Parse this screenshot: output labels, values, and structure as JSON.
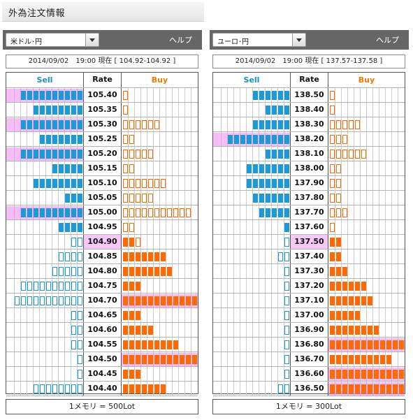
{
  "page_title": "外為注文情報",
  "panels": [
    {
      "pair": "米ドル･円",
      "help": "ヘルプ",
      "stamp": "2014/09/02　19:00 現在 [ 104.92-104.92 ]",
      "headers": {
        "sell": "Sell",
        "rate": "Rate",
        "buy": "Buy"
      },
      "current_rate": "104.90",
      "rows": [
        {
          "rate": "105.40",
          "sell": 10,
          "sell_type": "filled",
          "sell_hl": true,
          "buy": 1,
          "buy_type": "empty",
          "buy_hl": false
        },
        {
          "rate": "105.35",
          "sell": 8,
          "sell_type": "filled",
          "sell_hl": false,
          "buy": 1,
          "buy_type": "empty",
          "buy_hl": false
        },
        {
          "rate": "105.30",
          "sell": 10,
          "sell_type": "filled",
          "sell_hl": true,
          "buy": 6,
          "buy_type": "empty",
          "buy_hl": false
        },
        {
          "rate": "105.25",
          "sell": 7,
          "sell_type": "filled",
          "sell_hl": false,
          "buy": 2,
          "buy_type": "empty",
          "buy_hl": false
        },
        {
          "rate": "105.20",
          "sell": 10,
          "sell_type": "filled",
          "sell_hl": true,
          "buy": 5,
          "buy_type": "empty",
          "buy_hl": false
        },
        {
          "rate": "105.15",
          "sell": 5,
          "sell_type": "filled",
          "sell_hl": false,
          "buy": 2,
          "buy_type": "empty",
          "buy_hl": false
        },
        {
          "rate": "105.10",
          "sell": 8,
          "sell_type": "filled",
          "sell_hl": false,
          "buy": 7,
          "buy_type": "empty",
          "buy_hl": false
        },
        {
          "rate": "105.05",
          "sell": 3,
          "sell_type": "filled",
          "sell_hl": false,
          "buy": 5,
          "buy_type": "empty",
          "buy_hl": false
        },
        {
          "rate": "105.00",
          "sell": 10,
          "sell_type": "filled",
          "sell_hl": true,
          "buy": 11,
          "buy_type": "empty",
          "buy_hl": false
        },
        {
          "rate": "104.95",
          "sell": 4,
          "sell_type": "filled",
          "sell_hl": false,
          "buy": 2,
          "buy_type": "empty",
          "buy_hl": false
        },
        {
          "rate": "104.90",
          "sell": 2,
          "sell_type": "empty",
          "sell_hl": false,
          "buy": 3,
          "buy_type": "mixed",
          "buy_hl": false
        },
        {
          "rate": "104.85",
          "sell": 4,
          "sell_type": "empty",
          "sell_hl": false,
          "buy": 7,
          "buy_type": "filled",
          "buy_hl": false
        },
        {
          "rate": "104.80",
          "sell": 5,
          "sell_type": "empty",
          "sell_hl": false,
          "buy": 8,
          "buy_type": "filled",
          "buy_hl": false
        },
        {
          "rate": "104.75",
          "sell": 10,
          "sell_type": "empty",
          "sell_hl": false,
          "buy": 3,
          "buy_type": "filled",
          "buy_hl": false
        },
        {
          "rate": "104.70",
          "sell": 11,
          "sell_type": "empty",
          "sell_hl": false,
          "buy": 12,
          "buy_type": "filled",
          "buy_hl": true
        },
        {
          "rate": "104.65",
          "sell": 2,
          "sell_type": "empty",
          "sell_hl": false,
          "buy": 3,
          "buy_type": "filled",
          "buy_hl": false
        },
        {
          "rate": "104.60",
          "sell": 2,
          "sell_type": "empty",
          "sell_hl": false,
          "buy": 5,
          "buy_type": "filled",
          "buy_hl": false
        },
        {
          "rate": "104.55",
          "sell": 2,
          "sell_type": "empty",
          "sell_hl": false,
          "buy": 9,
          "buy_type": "filled",
          "buy_hl": false
        },
        {
          "rate": "104.50",
          "sell": 1,
          "sell_type": "empty",
          "sell_hl": false,
          "buy": 12,
          "buy_type": "filled",
          "buy_hl": true
        },
        {
          "rate": "104.45",
          "sell": 1,
          "sell_type": "empty",
          "sell_hl": false,
          "buy": 3,
          "buy_type": "filled",
          "buy_hl": false
        },
        {
          "rate": "104.40",
          "sell": 8,
          "sell_type": "empty",
          "sell_hl": false,
          "buy": 7,
          "buy_type": "filled",
          "buy_hl": false
        }
      ],
      "footer": "1メモリ = 500Lot"
    },
    {
      "pair": "ユーロ･円",
      "help": "ヘルプ",
      "stamp": "2014/09/02　19:00 現在 [ 137.57-137.58 ]",
      "headers": {
        "sell": "Sell",
        "rate": "Rate",
        "buy": "Buy"
      },
      "current_rate": "137.50",
      "rows": [
        {
          "rate": "138.50",
          "sell": 6,
          "sell_type": "filled",
          "sell_hl": false,
          "buy": 1,
          "buy_type": "empty",
          "buy_hl": false
        },
        {
          "rate": "138.40",
          "sell": 4,
          "sell_type": "filled",
          "sell_hl": false,
          "buy": 1,
          "buy_type": "empty",
          "buy_hl": false
        },
        {
          "rate": "138.30",
          "sell": 6,
          "sell_type": "filled",
          "sell_hl": false,
          "buy": 5,
          "buy_type": "empty",
          "buy_hl": false
        },
        {
          "rate": "138.20",
          "sell": 10,
          "sell_type": "filled",
          "sell_hl": true,
          "buy": 3,
          "buy_type": "empty",
          "buy_hl": false
        },
        {
          "rate": "138.10",
          "sell": 4,
          "sell_type": "filled",
          "sell_hl": false,
          "buy": 6,
          "buy_type": "empty",
          "buy_hl": false
        },
        {
          "rate": "138.00",
          "sell": 7,
          "sell_type": "filled",
          "sell_hl": false,
          "buy": 2,
          "buy_type": "empty",
          "buy_hl": false
        },
        {
          "rate": "137.90",
          "sell": 7,
          "sell_type": "filled",
          "sell_hl": false,
          "buy": 2,
          "buy_type": "empty",
          "buy_hl": false
        },
        {
          "rate": "137.80",
          "sell": 6,
          "sell_type": "filled",
          "sell_hl": false,
          "buy": 2,
          "buy_type": "empty",
          "buy_hl": false
        },
        {
          "rate": "137.70",
          "sell": 5,
          "sell_type": "filled",
          "sell_hl": false,
          "buy": 3,
          "buy_type": "empty",
          "buy_hl": false
        },
        {
          "rate": "137.60",
          "sell": 1,
          "sell_type": "filled",
          "sell_hl": false,
          "buy": 1,
          "buy_type": "empty",
          "buy_hl": false
        },
        {
          "rate": "137.50",
          "sell": 1,
          "sell_type": "empty",
          "sell_hl": false,
          "buy": 2,
          "buy_type": "filled",
          "buy_hl": false
        },
        {
          "rate": "137.40",
          "sell": 2,
          "sell_type": "empty",
          "sell_hl": false,
          "buy": 2,
          "buy_type": "filled",
          "buy_hl": false
        },
        {
          "rate": "137.30",
          "sell": 1,
          "sell_type": "empty",
          "sell_hl": false,
          "buy": 3,
          "buy_type": "filled",
          "buy_hl": false
        },
        {
          "rate": "137.20",
          "sell": 1,
          "sell_type": "empty",
          "sell_hl": false,
          "buy": 6,
          "buy_type": "filled",
          "buy_hl": false
        },
        {
          "rate": "137.10",
          "sell": 1,
          "sell_type": "empty",
          "sell_hl": false,
          "buy": 7,
          "buy_type": "filled",
          "buy_hl": false
        },
        {
          "rate": "137.00",
          "sell": 1,
          "sell_type": "empty",
          "sell_hl": false,
          "buy": 5,
          "buy_type": "filled",
          "buy_hl": false
        },
        {
          "rate": "136.90",
          "sell": 1,
          "sell_type": "empty",
          "sell_hl": false,
          "buy": 8,
          "buy_type": "filled",
          "buy_hl": false
        },
        {
          "rate": "136.80",
          "sell": 1,
          "sell_type": "empty",
          "sell_hl": false,
          "buy": 12,
          "buy_type": "filled",
          "buy_hl": true
        },
        {
          "rate": "136.70",
          "sell": 1,
          "sell_type": "empty",
          "sell_hl": false,
          "buy": 10,
          "buy_type": "filled",
          "buy_hl": false
        },
        {
          "rate": "136.60",
          "sell": 1,
          "sell_type": "empty",
          "sell_hl": false,
          "buy": 12,
          "buy_type": "filled",
          "buy_hl": true
        },
        {
          "rate": "136.50",
          "sell": 2,
          "sell_type": "empty",
          "sell_hl": false,
          "buy": 12,
          "buy_type": "filled",
          "buy_hl": true
        }
      ],
      "footer": "1メモリ = 300Lot"
    }
  ],
  "colors": {
    "sell": "#1c9ad6",
    "buy": "#ff6a00",
    "highlight": "#ee88ee",
    "current_rate_bg": "#f5c8f5",
    "header_bar": "#666666"
  }
}
